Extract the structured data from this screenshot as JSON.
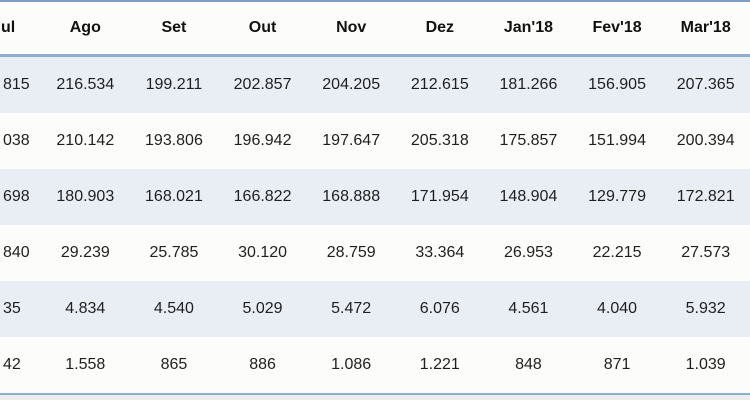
{
  "chart_data": {
    "type": "table",
    "title": "",
    "columns": [
      "ul",
      "Ago",
      "Set",
      "Out",
      "Nov",
      "Dez",
      "Jan'18",
      "Fev'18",
      "Mar'18"
    ],
    "rows": [
      [
        "815",
        "216.534",
        "199.211",
        "202.857",
        "204.205",
        "212.615",
        "181.266",
        "156.905",
        "207.365"
      ],
      [
        "038",
        "210.142",
        "193.806",
        "196.942",
        "197.647",
        "205.318",
        "175.857",
        "151.994",
        "200.394"
      ],
      [
        "698",
        "180.903",
        "168.021",
        "166.822",
        "168.888",
        "171.954",
        "148.904",
        "129.779",
        "172.821"
      ],
      [
        "840",
        "29.239",
        "25.785",
        "30.120",
        "28.759",
        "33.364",
        "26.953",
        "22.215",
        "27.573"
      ],
      [
        "35",
        "4.834",
        "4.540",
        "5.029",
        "5.472",
        "6.076",
        "4.561",
        "4.040",
        "5.932"
      ],
      [
        "42",
        "1.558",
        "865",
        "886",
        "1.086",
        "1.221",
        "848",
        "871",
        "1.039"
      ]
    ],
    "layout": {
      "banded_row_indexes": [
        0,
        2,
        4
      ],
      "first_column_clipped": true
    }
  },
  "colors": {
    "border_accent": "#8facd3",
    "border_top": "#7e9cc8",
    "band_fill": "#e9edf4",
    "plain_fill": "#fcfcfa",
    "header_text": "#111111",
    "cell_text": "#1f1f1f"
  }
}
